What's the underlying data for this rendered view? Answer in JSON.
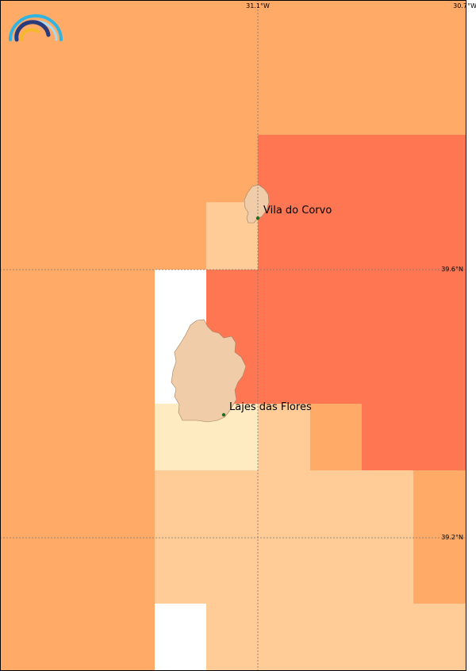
{
  "map": {
    "places": [
      {
        "name": "Vila do Corvo"
      },
      {
        "name": "Lajes das Flores"
      }
    ],
    "grid_labels": {
      "lon": [
        "31.1°W",
        "30.7°W"
      ],
      "lat": [
        "39.6°N",
        "39.2°N"
      ]
    },
    "legend_scale": [
      "#fff0c4",
      "#ffcc98",
      "#ffaa66",
      "#ff7650"
    ],
    "colors": {
      "light_yellow": "#ffebc2",
      "peach_light": "#ffcb96",
      "peach": "#ffab67",
      "red_orange": "#ff7652",
      "white": "#ffffff",
      "land": "#f0cca8",
      "grid": "#777777",
      "place_dot": "#1f6e1f"
    },
    "logo": {
      "icon": "rainbow-logo-icon"
    }
  }
}
